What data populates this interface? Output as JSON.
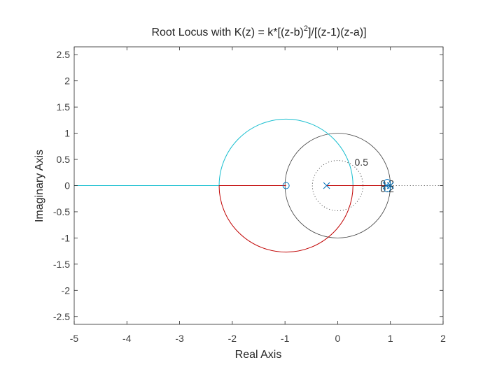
{
  "chart_data": {
    "type": "line",
    "title": {
      "prefix": "Root Locus with K(z) = k*[(z-b)",
      "superscript": "2",
      "suffix": "]/[(z-1)(z-a)]"
    },
    "xlabel": "Real Axis",
    "ylabel": "Imaginary Axis",
    "xlim": [
      -5,
      2
    ],
    "ylim": [
      -2.65,
      2.65
    ],
    "xticks": [
      -5,
      -4,
      -3,
      -2,
      -1,
      0,
      1,
      2
    ],
    "yticks": [
      -2.5,
      -2,
      -1.5,
      -1,
      -0.5,
      0,
      0.5,
      1,
      1.5,
      2,
      2.5
    ],
    "xtick_labels": [
      "-5",
      "-4",
      "-3",
      "-2",
      "-1",
      "0",
      "1",
      "2"
    ],
    "ytick_labels": [
      "-2.5",
      "-2",
      "-1.5",
      "-1",
      "-0.5",
      "0",
      "0.5",
      "1",
      "1.5",
      "2",
      "2.5"
    ],
    "grid": false,
    "unit_circle": {
      "center": [
        0,
        0
      ],
      "radius": 1,
      "color": "#404040"
    },
    "damping_ratio_circle": {
      "center": [
        0,
        0
      ],
      "radius": 0.48,
      "color": "#404040",
      "style": "dotted"
    },
    "real_axis_guide": {
      "from": 1,
      "to": 2,
      "style": "dotted",
      "color": "#404040"
    },
    "annotations": [
      {
        "text": "0.5",
        "x": 0.32,
        "y": 0.45
      },
      {
        "text": "0.2",
        "x": 0.81,
        "y": 0.04
      },
      {
        "text": "0.2",
        "x": 0.81,
        "y": -0.06
      }
    ],
    "poles": [
      {
        "x": -0.21,
        "y": 0
      },
      {
        "x": 0.92,
        "y": 0
      },
      {
        "x": 1.0,
        "y": 0
      }
    ],
    "zeros": [
      {
        "x": -0.98,
        "y": 0
      },
      {
        "x": 0.94,
        "y": 0.06
      },
      {
        "x": 0.94,
        "y": -0.06
      }
    ],
    "series": [
      {
        "color": "#0072BD",
        "type": "segments",
        "segments": [
          [
            [
              0.92,
              0
            ],
            [
              1.0,
              0
            ]
          ]
        ]
      },
      {
        "color": "#D95319",
        "type": "segments",
        "segments": [
          [
            [
              0.92,
              0
            ],
            [
              0.98,
              0
            ]
          ]
        ]
      },
      {
        "color": "#EDB120",
        "type": "segments",
        "segments": [
          [
            [
              0.93,
              0
            ],
            [
              0.97,
              0
            ]
          ]
        ]
      },
      {
        "color": "#17BECF",
        "type": "locus",
        "circle_center": [
          -0.98,
          0
        ],
        "circle_radius": 1.27,
        "arc": "upper",
        "segments": [
          [
            [
              -5,
              0
            ],
            [
              -2.25,
              0
            ]
          ]
        ]
      },
      {
        "color": "#C00000",
        "type": "locus",
        "circle_center": [
          -0.98,
          0
        ],
        "circle_radius": 1.27,
        "arc": "lower",
        "segments": [
          [
            [
              -2.25,
              0
            ],
            [
              -0.98,
              0
            ]
          ],
          [
            [
              -0.21,
              0
            ],
            [
              0.92,
              0
            ]
          ]
        ]
      }
    ]
  }
}
